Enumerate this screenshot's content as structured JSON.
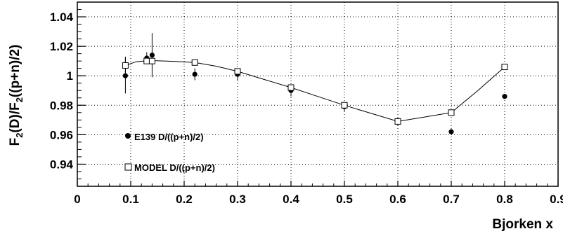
{
  "chart_data": {
    "type": "scatter",
    "title": "",
    "xlabel": "Bjorken x",
    "ylabel_parts": [
      "F",
      "2",
      "(D)/F",
      "2",
      "((p+n)/2)"
    ],
    "xlim": [
      0,
      0.9
    ],
    "ylim": [
      0.925,
      1.05
    ],
    "grid": true,
    "legend_position": "lower-left",
    "x_ticks": [
      {
        "value": 0,
        "label": "0"
      },
      {
        "value": 0.1,
        "label": "0.1"
      },
      {
        "value": 0.2,
        "label": "0.2"
      },
      {
        "value": 0.3,
        "label": "0.3"
      },
      {
        "value": 0.4,
        "label": "0.4"
      },
      {
        "value": 0.5,
        "label": "0.5"
      },
      {
        "value": 0.6,
        "label": "0.6"
      },
      {
        "value": 0.7,
        "label": "0.7"
      },
      {
        "value": 0.8,
        "label": "0.8"
      },
      {
        "value": 0.9,
        "label": "0.9"
      }
    ],
    "y_ticks": [
      {
        "value": 0.94,
        "label": "0.94"
      },
      {
        "value": 0.96,
        "label": "0.96"
      },
      {
        "value": 0.98,
        "label": "0.98"
      },
      {
        "value": 1.0,
        "label": "1"
      },
      {
        "value": 1.02,
        "label": "1.02"
      },
      {
        "value": 1.04,
        "label": "1.04"
      }
    ],
    "series": [
      {
        "name": "E139 D/((p+n)/2)",
        "marker": "filled-circle",
        "color": "#000000",
        "points": [
          {
            "x": 0.09,
            "y": 1.0,
            "err": 0.012
          },
          {
            "x": 0.13,
            "y": 1.012,
            "err": 0.004
          },
          {
            "x": 0.14,
            "y": 1.014,
            "err": 0.015
          },
          {
            "x": 0.22,
            "y": 1.001,
            "err": 0.004
          },
          {
            "x": 0.3,
            "y": 1.001,
            "err": 0.004
          },
          {
            "x": 0.4,
            "y": 0.99,
            "err": 0.004
          },
          {
            "x": 0.5,
            "y": 0.979,
            "err": 0.003
          },
          {
            "x": 0.6,
            "y": 0.969,
            "err": 0.003
          },
          {
            "x": 0.7,
            "y": 0.962,
            "err": 0.0
          },
          {
            "x": 0.8,
            "y": 0.986,
            "err": 0.0
          }
        ]
      },
      {
        "name": "MODEL D/((p+n)/2)",
        "marker": "open-square",
        "color": "#000000",
        "points": [
          {
            "x": 0.09,
            "y": 1.007,
            "err": 0.006
          },
          {
            "x": 0.13,
            "y": 1.01,
            "err": 0.0
          },
          {
            "x": 0.14,
            "y": 1.01,
            "err": 0.0
          },
          {
            "x": 0.22,
            "y": 1.009,
            "err": 0.0
          },
          {
            "x": 0.3,
            "y": 1.003,
            "err": 0.0
          },
          {
            "x": 0.4,
            "y": 0.992,
            "err": 0.0
          },
          {
            "x": 0.5,
            "y": 0.98,
            "err": 0.0
          },
          {
            "x": 0.6,
            "y": 0.969,
            "err": 0.0
          },
          {
            "x": 0.7,
            "y": 0.975,
            "err": 0.0
          },
          {
            "x": 0.8,
            "y": 1.006,
            "err": 0.0
          }
        ]
      }
    ],
    "model_curve": [
      [
        0.09,
        1.007
      ],
      [
        0.11,
        1.0095
      ],
      [
        0.13,
        1.0102
      ],
      [
        0.15,
        1.0102
      ],
      [
        0.18,
        1.0098
      ],
      [
        0.22,
        1.009
      ],
      [
        0.26,
        1.0065
      ],
      [
        0.3,
        1.003
      ],
      [
        0.35,
        0.9975
      ],
      [
        0.4,
        0.992
      ],
      [
        0.45,
        0.986
      ],
      [
        0.5,
        0.98
      ],
      [
        0.55,
        0.9745
      ],
      [
        0.6,
        0.969
      ],
      [
        0.65,
        0.972
      ],
      [
        0.7,
        0.975
      ],
      [
        0.75,
        0.99
      ],
      [
        0.8,
        1.006
      ]
    ]
  }
}
